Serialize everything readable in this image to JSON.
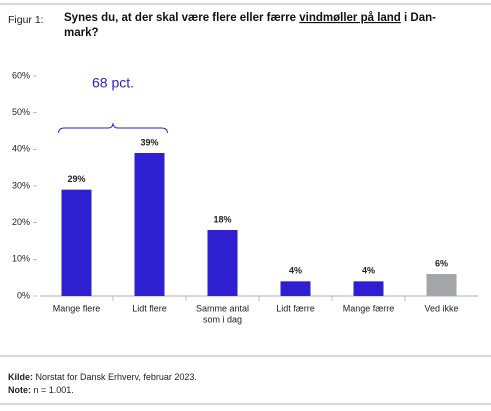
{
  "figure_label": "Figur 1:",
  "chart_data": {
    "type": "bar",
    "title": [
      "Synes du, at der skal være flere eller færre ",
      "vindmøller på land",
      " i Dan-",
      "mark?"
    ],
    "categories": [
      [
        "Mange flere"
      ],
      [
        "Lidt flere"
      ],
      [
        "Samme antal",
        "som i dag"
      ],
      [
        "Lidt færre"
      ],
      [
        "Mange færre"
      ],
      [
        "Ved ikke"
      ]
    ],
    "values": [
      29,
      39,
      18,
      4,
      4,
      6
    ],
    "value_labels": [
      "29%",
      "39%",
      "18%",
      "4%",
      "4%",
      "6%"
    ],
    "colors": [
      "#2e1fd1",
      "#2e1fd1",
      "#2e1fd1",
      "#2e1fd1",
      "#2e1fd1",
      "#a3a5a8"
    ],
    "ylim": [
      0,
      60
    ],
    "yticks": [
      {
        "value": 0,
        "label": "0%"
      },
      {
        "value": 10,
        "label": "10%"
      },
      {
        "value": 20,
        "label": "20%"
      },
      {
        "value": 30,
        "label": "30%"
      },
      {
        "value": 40,
        "label": "40%"
      },
      {
        "value": 50,
        "label": "50%"
      },
      {
        "value": 60,
        "label": "60%"
      }
    ],
    "annotation": "68 pct."
  },
  "source": {
    "label": "Kilde:",
    "text": " Norstat for Dansk Erhverv, februar 2023."
  },
  "note": {
    "label": "Note:",
    "text": " n = 1.001."
  }
}
